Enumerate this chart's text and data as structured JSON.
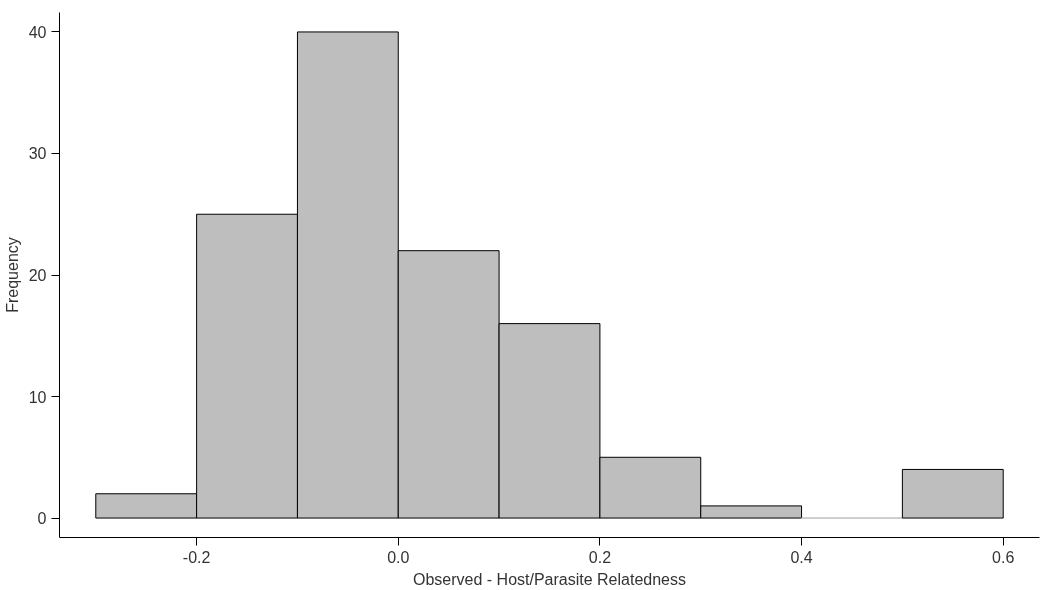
{
  "chart_data": {
    "type": "histogram",
    "xlabel": "Observed - Host/Parasite Relatedness",
    "ylabel": "Frequency",
    "bins": [
      -0.3,
      -0.2,
      -0.1,
      0.0,
      0.1,
      0.2,
      0.3,
      0.4,
      0.5,
      0.6
    ],
    "values": [
      2,
      25,
      40,
      22,
      16,
      5,
      1,
      0,
      4
    ],
    "color": "#bebebe",
    "xlim": [
      -0.336,
      0.636
    ],
    "ylim": [
      -1.6,
      41.6
    ],
    "xticks": [
      -0.2,
      {
        "value": 0,
        "label": "0.0"
      },
      0.2,
      0.4,
      0.6
    ],
    "yticks": [
      0,
      10,
      20,
      30,
      40
    ]
  }
}
